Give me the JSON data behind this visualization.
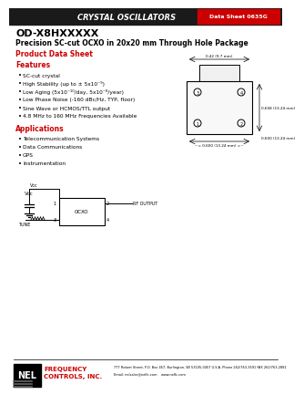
{
  "title_bar_text": "CRYSTAL OSCILLATORS",
  "datasheet_num": "Data Sheet 0635G",
  "product_id": "OD-X8HXXXXX",
  "product_desc": "Precision SC-cut OCXO in 20x20 mm Through Hole Package",
  "section1": "Product Data Sheet",
  "section2_title": "Features",
  "features": [
    "SC-cut crystal",
    "High Stability (up to ± 5x10⁻⁹)",
    "Low Aging (5x10⁻¹⁰/day, 5x10⁻⁸/year)",
    "Low Phase Noise (-160 dBc/Hz, TYP, floor)",
    "Sine Wave or HCMOS/TTL output",
    "4.8 MHz to 160 MHz Frequencies Available"
  ],
  "section3_title": "Applications",
  "applications": [
    "Telecommunication Systems",
    "Data Communications",
    "GPS",
    "Instrumentation"
  ],
  "footer_address": "777 Robert Street, P.O. Box 457, Burlington, WI 53105-0457 U.S.A. Phone 262/763-3591 FAX 262/763-2881",
  "footer_email": "Email: nelsales@nelfc.com    www.nelfc.com",
  "bg_color": "#ffffff",
  "header_bar_color": "#1a1a1a",
  "header_text_color": "#ffffff",
  "red_color": "#cc0000"
}
